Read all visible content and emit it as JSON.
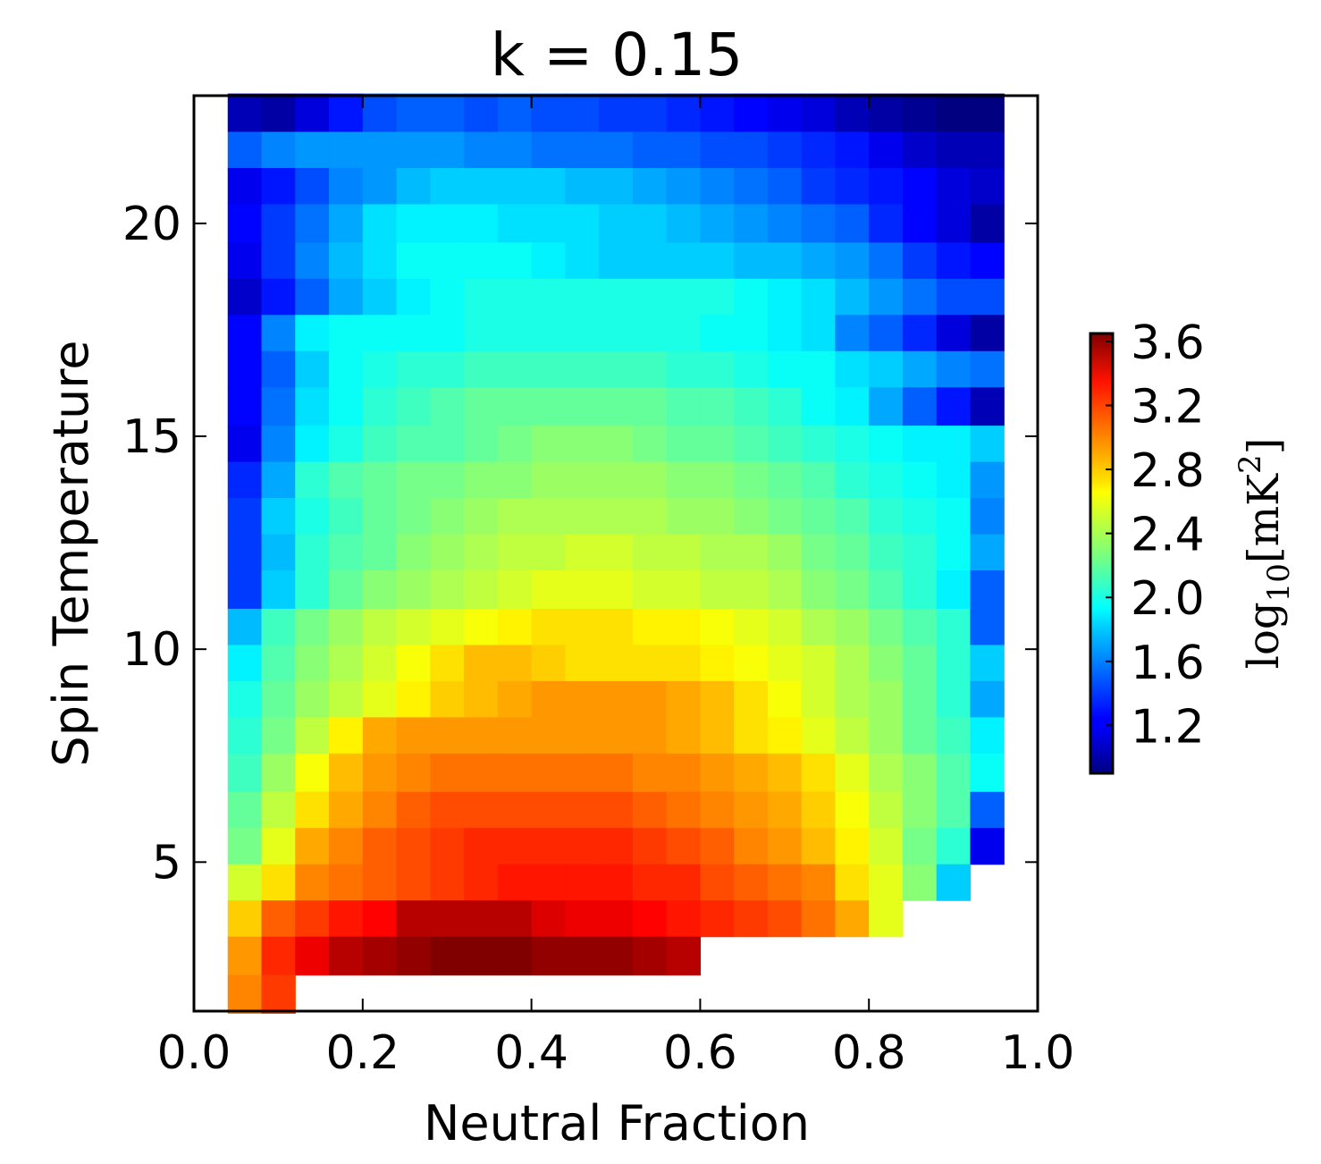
{
  "chart_data": {
    "type": "heatmap",
    "title": "k = 0.15",
    "xlabel": "Neutral Fraction",
    "ylabel": "Spin Temperature",
    "xlim": [
      0.0,
      1.0
    ],
    "ylim": [
      1.5,
      23.0
    ],
    "xticks": [
      0.0,
      0.2,
      0.4,
      0.6,
      0.8,
      1.0
    ],
    "xtick_labels": [
      "0.0",
      "0.2",
      "0.4",
      "0.6",
      "0.8",
      "1.0"
    ],
    "yticks": [
      5,
      10,
      15,
      20
    ],
    "ytick_labels": [
      "5",
      "10",
      "15",
      "20"
    ],
    "colormap": "jet",
    "colorbar": {
      "label": "log10[mK^2]",
      "label_parts": [
        "log",
        "10",
        "[mK",
        "2",
        "]"
      ],
      "range": [
        0.9,
        3.65
      ],
      "ticks": [
        1.2,
        1.6,
        2.0,
        2.4,
        2.8,
        3.2,
        3.6
      ],
      "tick_labels": [
        "1.2",
        "1.6",
        "2.0",
        "2.4",
        "2.8",
        "3.2",
        "3.6"
      ]
    },
    "x_centers": [
      0.06,
      0.1,
      0.14,
      0.18,
      0.22,
      0.26,
      0.3,
      0.34,
      0.38,
      0.42,
      0.46,
      0.5,
      0.54,
      0.58,
      0.62,
      0.66,
      0.7,
      0.74,
      0.78,
      0.82,
      0.86,
      0.9,
      0.94
    ],
    "y_centers": [
      22.6,
      21.7,
      20.9,
      20.0,
      19.1,
      18.3,
      17.4,
      16.6,
      15.7,
      14.8,
      14.0,
      13.1,
      12.3,
      11.4,
      10.5,
      9.7,
      8.8,
      8.0,
      7.1,
      6.2,
      5.4,
      4.5,
      3.7,
      2.8,
      1.9
    ],
    "values": [
      [
        1.05,
        1.0,
        1.15,
        1.3,
        1.45,
        1.5,
        1.5,
        1.45,
        1.5,
        1.45,
        1.45,
        1.4,
        1.4,
        1.35,
        1.3,
        1.25,
        1.2,
        1.15,
        1.05,
        1.0,
        0.95,
        0.9,
        0.8
      ],
      [
        1.5,
        1.6,
        1.65,
        1.65,
        1.65,
        1.65,
        1.65,
        1.6,
        1.6,
        1.55,
        1.55,
        1.55,
        1.5,
        1.5,
        1.45,
        1.45,
        1.4,
        1.35,
        1.3,
        1.2,
        1.1,
        1.05,
        1.05
      ],
      [
        1.2,
        1.3,
        1.45,
        1.6,
        1.65,
        1.75,
        1.8,
        1.8,
        1.8,
        1.8,
        1.75,
        1.75,
        1.7,
        1.65,
        1.6,
        1.55,
        1.5,
        1.4,
        1.35,
        1.3,
        1.25,
        1.15,
        1.1
      ],
      [
        1.25,
        1.4,
        1.55,
        1.7,
        1.85,
        1.9,
        1.9,
        1.9,
        1.85,
        1.85,
        1.85,
        1.8,
        1.8,
        1.75,
        1.7,
        1.65,
        1.6,
        1.55,
        1.5,
        1.35,
        1.25,
        1.15,
        1.0
      ],
      [
        1.2,
        1.4,
        1.6,
        1.75,
        1.85,
        1.95,
        1.95,
        1.95,
        1.95,
        1.9,
        1.85,
        1.8,
        1.8,
        1.8,
        1.8,
        1.75,
        1.75,
        1.7,
        1.65,
        1.55,
        1.4,
        1.3,
        1.25
      ],
      [
        1.1,
        1.3,
        1.5,
        1.7,
        1.8,
        1.9,
        1.95,
        2.0,
        2.0,
        2.0,
        2.0,
        2.0,
        2.0,
        2.0,
        2.0,
        1.95,
        1.9,
        1.85,
        1.75,
        1.65,
        1.55,
        1.45,
        1.45
      ],
      [
        1.25,
        1.6,
        1.9,
        1.95,
        1.95,
        1.95,
        1.95,
        2.0,
        2.0,
        2.0,
        2.0,
        2.0,
        2.0,
        2.0,
        1.95,
        1.95,
        1.9,
        1.85,
        1.6,
        1.5,
        1.35,
        1.15,
        1.0
      ],
      [
        1.25,
        1.5,
        1.8,
        1.95,
        2.0,
        2.05,
        2.05,
        2.1,
        2.1,
        2.1,
        2.1,
        2.1,
        2.1,
        2.05,
        2.05,
        2.0,
        1.95,
        1.95,
        1.85,
        1.8,
        1.7,
        1.6,
        1.55
      ],
      [
        1.25,
        1.55,
        1.85,
        1.95,
        2.05,
        2.1,
        2.15,
        2.2,
        2.2,
        2.2,
        2.2,
        2.2,
        2.2,
        2.15,
        2.15,
        2.1,
        2.05,
        1.95,
        1.9,
        1.7,
        1.5,
        1.3,
        1.05
      ],
      [
        1.2,
        1.6,
        1.9,
        2.0,
        2.1,
        2.15,
        2.15,
        2.2,
        2.25,
        2.3,
        2.3,
        2.3,
        2.25,
        2.2,
        2.2,
        2.15,
        2.1,
        2.05,
        2.0,
        1.95,
        1.9,
        1.9,
        1.8
      ],
      [
        1.35,
        1.7,
        2.05,
        2.15,
        2.2,
        2.25,
        2.25,
        2.3,
        2.3,
        2.35,
        2.35,
        2.35,
        2.35,
        2.3,
        2.3,
        2.25,
        2.2,
        2.15,
        2.05,
        2.0,
        1.95,
        1.9,
        1.65
      ],
      [
        1.4,
        1.8,
        2.0,
        2.1,
        2.2,
        2.25,
        2.3,
        2.35,
        2.4,
        2.4,
        2.4,
        2.4,
        2.4,
        2.35,
        2.35,
        2.3,
        2.25,
        2.2,
        2.15,
        2.05,
        2.0,
        1.95,
        1.6
      ],
      [
        1.4,
        1.75,
        2.05,
        2.15,
        2.2,
        2.3,
        2.35,
        2.4,
        2.45,
        2.45,
        2.5,
        2.5,
        2.45,
        2.45,
        2.4,
        2.4,
        2.35,
        2.25,
        2.2,
        2.1,
        2.05,
        1.95,
        1.7
      ],
      [
        1.4,
        1.8,
        2.05,
        2.2,
        2.3,
        2.35,
        2.4,
        2.45,
        2.5,
        2.55,
        2.55,
        2.55,
        2.5,
        2.5,
        2.45,
        2.45,
        2.4,
        2.3,
        2.25,
        2.15,
        2.05,
        1.9,
        1.5
      ],
      [
        1.75,
        2.1,
        2.25,
        2.35,
        2.45,
        2.5,
        2.55,
        2.6,
        2.65,
        2.7,
        2.7,
        2.7,
        2.65,
        2.65,
        2.6,
        2.55,
        2.5,
        2.4,
        2.35,
        2.25,
        2.15,
        2.05,
        1.5
      ],
      [
        1.9,
        2.15,
        2.3,
        2.4,
        2.5,
        2.6,
        2.7,
        2.8,
        2.8,
        2.75,
        2.7,
        2.7,
        2.7,
        2.7,
        2.65,
        2.6,
        2.55,
        2.5,
        2.4,
        2.3,
        2.2,
        2.05,
        1.8
      ],
      [
        2.0,
        2.2,
        2.35,
        2.45,
        2.55,
        2.65,
        2.75,
        2.8,
        2.85,
        2.9,
        2.9,
        2.9,
        2.9,
        2.85,
        2.8,
        2.7,
        2.6,
        2.5,
        2.4,
        2.35,
        2.2,
        2.05,
        1.7
      ],
      [
        2.05,
        2.25,
        2.45,
        2.65,
        2.85,
        2.9,
        2.9,
        2.9,
        2.9,
        2.9,
        2.9,
        2.9,
        2.9,
        2.85,
        2.8,
        2.7,
        2.65,
        2.55,
        2.45,
        2.35,
        2.2,
        2.1,
        1.9
      ],
      [
        2.1,
        2.35,
        2.6,
        2.8,
        2.9,
        2.95,
        3.0,
        3.0,
        3.0,
        3.0,
        3.0,
        3.0,
        2.95,
        2.95,
        2.9,
        2.85,
        2.8,
        2.7,
        2.55,
        2.4,
        2.3,
        2.15,
        1.95
      ],
      [
        2.2,
        2.45,
        2.7,
        2.85,
        2.95,
        3.05,
        3.1,
        3.1,
        3.1,
        3.1,
        3.1,
        3.1,
        3.05,
        3.0,
        2.95,
        2.9,
        2.85,
        2.75,
        2.6,
        2.45,
        2.3,
        2.15,
        1.5
      ],
      [
        2.25,
        2.55,
        2.85,
        2.95,
        3.05,
        3.1,
        3.15,
        3.2,
        3.2,
        3.2,
        3.2,
        3.2,
        3.15,
        3.1,
        3.05,
        2.95,
        2.9,
        2.8,
        2.65,
        2.5,
        2.25,
        2.05,
        1.2
      ],
      [
        2.5,
        2.7,
        2.95,
        3.0,
        3.05,
        3.1,
        3.15,
        3.2,
        3.25,
        3.25,
        3.25,
        3.25,
        3.2,
        3.2,
        3.1,
        3.05,
        3.0,
        2.95,
        2.7,
        2.55,
        2.3,
        1.8,
        null
      ],
      [
        2.75,
        3.05,
        3.15,
        3.25,
        3.3,
        3.5,
        3.5,
        3.5,
        3.5,
        3.4,
        3.35,
        3.35,
        3.3,
        3.25,
        3.2,
        3.15,
        3.1,
        3.0,
        2.85,
        2.55,
        null,
        null,
        null
      ],
      [
        2.9,
        3.2,
        3.35,
        3.5,
        3.55,
        3.6,
        3.65,
        3.65,
        3.65,
        3.6,
        3.6,
        3.6,
        3.55,
        3.5,
        null,
        null,
        null,
        null,
        null,
        null,
        null,
        null,
        null
      ],
      [
        2.95,
        3.15,
        null,
        null,
        null,
        null,
        null,
        null,
        null,
        null,
        null,
        null,
        null,
        null,
        null,
        null,
        null,
        null,
        null,
        null,
        null,
        null,
        null
      ]
    ]
  }
}
